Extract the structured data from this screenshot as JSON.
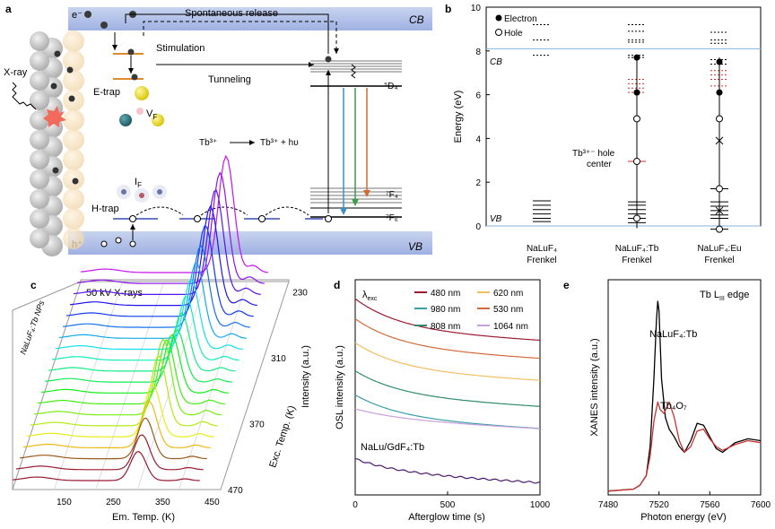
{
  "panels": {
    "a": {
      "label": "a",
      "cb": "CB",
      "vb": "VB",
      "e_minus": "e⁻",
      "h_plus": "h⁺",
      "spontaneous": "Spontaneous release",
      "stimulation": "Stimulation",
      "tunneling": "Tunneling",
      "xray": "X-ray",
      "etrap": "E-trap",
      "htrap": "H-trap",
      "vf": "V",
      "vf_sub": "F",
      "if": "I",
      "if_sub": "F",
      "d4": "⁵D₄",
      "f4": "⁷F₄",
      "f6": "⁷F₆",
      "eq_left": "Tb³⁺",
      "eq_right": "Tb³⁺ + hυ"
    },
    "b": {
      "label": "b",
      "ylabel": "Energy (eV)",
      "legend_electron": "Electron",
      "legend_hole": "Hole",
      "cb": "CB",
      "vb": "VB",
      "annot1": "Tb³⁺⁻ hole",
      "annot2": "center",
      "cat1a": "NaLuF₄",
      "cat1b": "Frenkel",
      "cat2a": "NaLuF₄:Tb",
      "cat2b": "Frenkel",
      "cat3a": "NaLuF₄:Eu",
      "cat3b": "Frenkel"
    },
    "c": {
      "label": "c",
      "title": "50 kV X-rays",
      "sample": "NaLuF₄:Tb NPs",
      "xlabel": "Em. Temp. (K)",
      "ylabel": "Exc. Temp. (K)",
      "zlabel": "Intensity (a.u.)"
    },
    "d": {
      "label": "d",
      "legend_title": "λ",
      "legend_title_sub": "exc",
      "sample": "NaLu/GdF₄:Tb",
      "xlabel": "Afterglow time (s)",
      "ylabel": "OSL intensity (a.u.)"
    },
    "e": {
      "label": "e",
      "title": "Tb L",
      "title_sub": "III",
      "title_tail": " edge",
      "s1": "NaLuF₄:Tb",
      "s2": "Tb₄O₇",
      "xlabel": "Photon energy (eV)",
      "ylabel": "XANES intensity (a.u.)"
    }
  },
  "chart_data": [
    {
      "panel": "b",
      "type": "scatter",
      "ylabel": "Energy (eV)",
      "ylim": [
        0,
        10
      ],
      "yticks": [
        0,
        2,
        4,
        6,
        8,
        10
      ],
      "categories": [
        "NaLuF₄ Frenkel",
        "NaLuF₄:Tb Frenkel",
        "NaLuF₄:Eu Frenkel"
      ],
      "cb_level": 8.1,
      "vb_level": 0,
      "levels": [
        {
          "cat": 0,
          "dashed": [
            9.2,
            8.5,
            7.8
          ],
          "solid": [
            1.15,
            0.95,
            0.75,
            0.55,
            0.35,
            0.2
          ]
        },
        {
          "cat": 1,
          "dashed": [
            9.2,
            8.9,
            8.5,
            8.4,
            7.8,
            7.7
          ],
          "red_dashed": [
            6.7,
            6.5,
            6.3,
            6.1
          ],
          "solid": [
            2.95,
            1.1,
            0.95,
            0.75,
            0.55,
            0.35,
            0.15
          ]
        },
        {
          "cat": 2,
          "dashed": [
            8.85,
            8.5,
            8.35,
            7.6,
            7.4
          ],
          "red_dashed": [
            7.1,
            6.9,
            6.7,
            6.4
          ],
          "solid": [
            1.7,
            1.1,
            0.9,
            0.7,
            0.5,
            0.35,
            -0.15
          ]
        }
      ],
      "electrons": [
        [
          1,
          7.7
        ],
        [
          1,
          6.1
        ],
        [
          2,
          7.5
        ],
        [
          2,
          6.1
        ]
      ],
      "holes": [
        [
          1,
          4.9
        ],
        [
          1,
          2.95
        ],
        [
          1,
          0.35
        ],
        [
          2,
          4.9
        ],
        [
          2,
          1.7
        ],
        [
          2,
          -0.15
        ]
      ],
      "crosses": [
        [
          2,
          3.9
        ],
        [
          2,
          0.7
        ]
      ],
      "legend": [
        "Electron",
        "Hole"
      ]
    },
    {
      "panel": "c",
      "type": "line",
      "xlabel": "Em. Temp. (K)",
      "ylabel": "Exc. Temp. (K)",
      "zlabel": "Intensity (a.u.)",
      "xticks": [
        150,
        250,
        350,
        450
      ],
      "xlim": [
        100,
        480
      ],
      "exc_ticks": [
        230,
        310,
        370,
        470
      ],
      "series_count": 20,
      "exc_temps": [
        470,
        460,
        450,
        440,
        430,
        420,
        410,
        400,
        390,
        380,
        370,
        360,
        340,
        320,
        310,
        290,
        270,
        250,
        240,
        230
      ],
      "peak_em_temp": [
        355,
        355,
        355,
        355,
        355,
        360,
        362,
        362,
        365,
        368,
        370,
        372,
        375,
        378,
        380,
        382,
        385,
        388,
        390,
        395
      ],
      "peak_height": [
        0.25,
        0.3,
        0.35,
        0.4,
        0.45,
        0.6,
        0.65,
        0.55,
        0.5,
        0.45,
        0.5,
        0.55,
        0.6,
        0.65,
        0.7,
        0.78,
        0.85,
        0.9,
        0.95,
        1.0
      ]
    },
    {
      "panel": "d",
      "type": "line",
      "xlabel": "Afterglow time (s)",
      "ylabel": "OSL intensity (a.u.)",
      "xlim": [
        0,
        1000
      ],
      "xticks": [
        0,
        500,
        1000
      ],
      "series": [
        {
          "name": "480 nm",
          "color": "#9b1b30",
          "offset": 0.98,
          "decay": 0.16
        },
        {
          "name": "530 nm",
          "color": "#d4693a",
          "offset": 0.88,
          "decay": 0.15
        },
        {
          "name": "620 nm",
          "color": "#f0c060",
          "offset": 0.76,
          "decay": 0.14
        },
        {
          "name": "808 nm",
          "color": "#2e8b6e",
          "offset": 0.62,
          "decay": 0.13
        },
        {
          "name": "980 nm",
          "color": "#3aa0a8",
          "offset": 0.5,
          "decay": 0.12
        },
        {
          "name": "1064 nm",
          "color": "#c9a0dc",
          "offset": 0.43,
          "decay": 0.05
        },
        {
          "name": "NaLu/GdF₄:Tb",
          "color": "#4b1a6e",
          "offset": 0.18,
          "decay": 0.07
        }
      ]
    },
    {
      "panel": "e",
      "type": "line",
      "xlabel": "Photon energy (eV)",
      "ylabel": "XANES intensity (a.u.)",
      "xlim": [
        7480,
        7600
      ],
      "xticks": [
        7480,
        7520,
        7560,
        7600
      ],
      "series": [
        {
          "name": "NaLuF₄:Tb",
          "color": "#000000",
          "x": [
            7480,
            7500,
            7505,
            7510,
            7513,
            7516,
            7518,
            7519,
            7520,
            7522,
            7525,
            7528,
            7532,
            7536,
            7540,
            7545,
            7550,
            7555,
            7560,
            7565,
            7570,
            7580,
            7590,
            7600
          ],
          "y": [
            0.02,
            0.03,
            0.05,
            0.1,
            0.25,
            0.6,
            0.9,
            1.0,
            0.95,
            0.6,
            0.4,
            0.34,
            0.3,
            0.25,
            0.22,
            0.28,
            0.37,
            0.36,
            0.3,
            0.24,
            0.22,
            0.27,
            0.29,
            0.28
          ]
        },
        {
          "name": "Tb₄O₇",
          "color": "#c83232",
          "x": [
            7480,
            7500,
            7505,
            7510,
            7513,
            7516,
            7519,
            7521,
            7524,
            7528,
            7532,
            7536,
            7540,
            7545,
            7550,
            7555,
            7560,
            7565,
            7570,
            7580,
            7590,
            7600
          ],
          "y": [
            0.02,
            0.03,
            0.05,
            0.1,
            0.2,
            0.38,
            0.48,
            0.44,
            0.42,
            0.48,
            0.4,
            0.28,
            0.22,
            0.25,
            0.33,
            0.34,
            0.29,
            0.25,
            0.23,
            0.26,
            0.28,
            0.27
          ]
        }
      ]
    }
  ]
}
